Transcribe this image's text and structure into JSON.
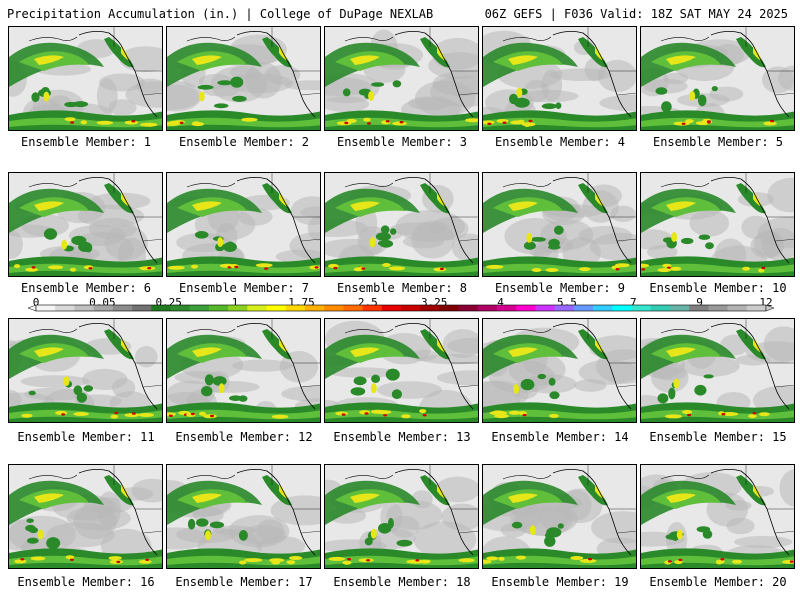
{
  "header": {
    "left": "Precipitation Accumulation (in.) | College of DuPage NEXLAB",
    "right": "06Z GEFS | F036 Valid: 18Z SAT MAY 24 2025"
  },
  "members": [
    "Ensemble Member: 1",
    "Ensemble Member: 2",
    "Ensemble Member: 3",
    "Ensemble Member: 4",
    "Ensemble Member: 5",
    "Ensemble Member: 6",
    "Ensemble Member: 7",
    "Ensemble Member: 8",
    "Ensemble Member: 9",
    "Ensemble Member: 10",
    "Ensemble Member: 11",
    "Ensemble Member: 12",
    "Ensemble Member: 13",
    "Ensemble Member: 14",
    "Ensemble Member: 15",
    "Ensemble Member: 16",
    "Ensemble Member: 17",
    "Ensemble Member: 18",
    "Ensemble Member: 19",
    "Ensemble Member: 20"
  ],
  "legend": {
    "tick_labels": [
      "0",
      "0.05",
      "0.25",
      "1",
      "1.75",
      "2.5",
      "3.25",
      "4",
      "5.5",
      "7",
      "9",
      "12"
    ],
    "colors": [
      "#f4f4f4",
      "#d9d9d9",
      "#c0c0c0",
      "#a6a6a6",
      "#8c8c8c",
      "#737373",
      "#1f7a1f",
      "#2e8b2e",
      "#3aa03a",
      "#55b82a",
      "#8cd11f",
      "#d6ef1a",
      "#ffff00",
      "#ffd700",
      "#ffb000",
      "#ff8c00",
      "#ff6a00",
      "#ff3300",
      "#e60000",
      "#c80000",
      "#a00000",
      "#800000",
      "#8b0033",
      "#b00066",
      "#d4008f",
      "#ff00cc",
      "#cc33ff",
      "#9966ff",
      "#6699ff",
      "#33ccff",
      "#00ffff",
      "#33e6cc",
      "#33ccb3",
      "#66b3a6",
      "#808080",
      "#999999",
      "#b3b3b3",
      "#cccccc"
    ]
  },
  "map_colors": {
    "background_light": "#e8e8e8",
    "background_mid": "#b8b8b8",
    "green_dark": "#2a8a2a",
    "green_light": "#5fbf3a",
    "yellow": "#e6e619",
    "orange": "#ff9900",
    "red": "#cc0000",
    "coast": "#000000"
  }
}
